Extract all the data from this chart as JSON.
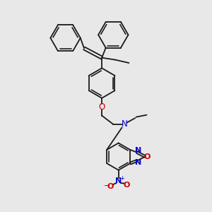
{
  "bg_color": "#e8e8e8",
  "bond_color": "#1a1a1a",
  "N_color": "#0000cc",
  "O_color": "#cc0000",
  "figsize": [
    3.0,
    3.0
  ],
  "dpi": 100,
  "xlim": [
    0,
    10
  ],
  "ylim": [
    0,
    10
  ]
}
